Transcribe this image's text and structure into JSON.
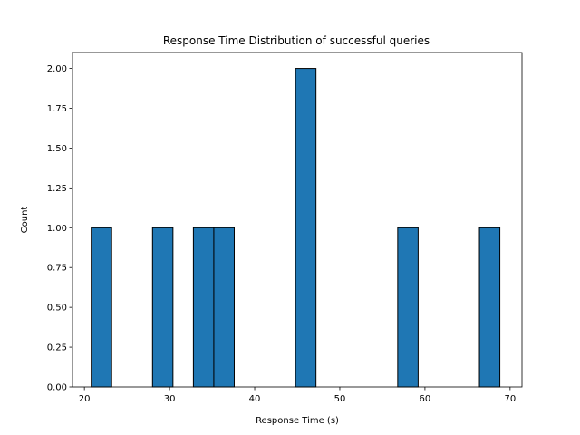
{
  "chart_data": {
    "type": "bar",
    "title": "Response Time Distribution of successful queries",
    "xlabel": "Response Time (s)",
    "ylabel": "Count",
    "xlim": [
      18.6,
      71.4
    ],
    "ylim": [
      0,
      2.1
    ],
    "x_ticks": [
      20,
      30,
      40,
      50,
      60,
      70
    ],
    "x_tick_labels": [
      "20",
      "30",
      "40",
      "50",
      "60",
      "70"
    ],
    "y_ticks": [
      0,
      0.25,
      0.5,
      0.75,
      1.0,
      1.25,
      1.5,
      1.75,
      2.0
    ],
    "y_tick_labels": [
      "0.00",
      "0.25",
      "0.50",
      "0.75",
      "1.00",
      "1.25",
      "1.50",
      "1.75",
      "2.00"
    ],
    "bins": [
      {
        "start": 20.8,
        "end": 23.2,
        "count": 1
      },
      {
        "start": 28.0,
        "end": 30.4,
        "count": 1
      },
      {
        "start": 32.8,
        "end": 35.2,
        "count": 1
      },
      {
        "start": 35.2,
        "end": 37.6,
        "count": 1
      },
      {
        "start": 44.8,
        "end": 47.2,
        "count": 2
      },
      {
        "start": 56.8,
        "end": 59.2,
        "count": 1
      },
      {
        "start": 66.4,
        "end": 68.8,
        "count": 1
      }
    ],
    "grid": false,
    "colors": {
      "bar_fill": "#1f77b4",
      "bar_edge": "#000000",
      "axis": "#000000",
      "text": "#000000",
      "background": "#ffffff"
    }
  }
}
